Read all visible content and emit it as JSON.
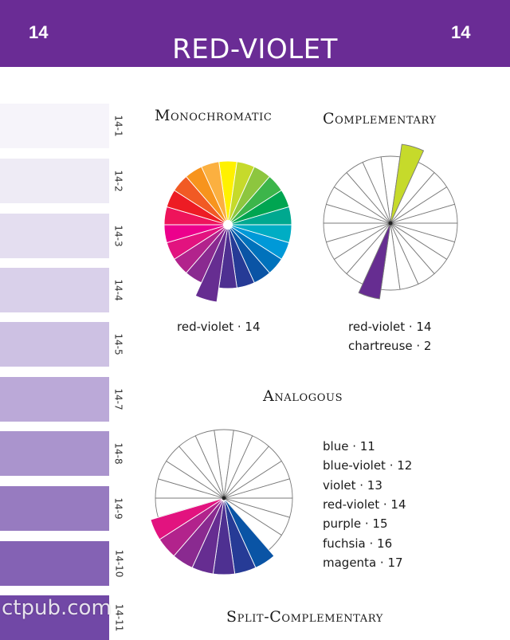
{
  "header": {
    "page_number_left": "14",
    "page_number_right": "14",
    "title": "RED-VIOLET",
    "background_color": "#6a2c95"
  },
  "swatches": [
    {
      "label": "14-1",
      "color": "#f6f4fa"
    },
    {
      "label": "14-2",
      "color": "#eeebf5"
    },
    {
      "label": "14-3",
      "color": "#e4def0"
    },
    {
      "label": "14-4",
      "color": "#d9d0ea"
    },
    {
      "label": "14-5",
      "color": "#cdc1e3"
    },
    {
      "label": "14-7",
      "color": "#bba9d8"
    },
    {
      "label": "14-8",
      "color": "#aa94cd"
    },
    {
      "label": "14-9",
      "color": "#977bc0"
    },
    {
      "label": "14-10",
      "color": "#8462b4"
    },
    {
      "label": "14-11",
      "color": "#7148a6"
    }
  ],
  "wheel_colors": [
    "#fff100",
    "#c6da2b",
    "#8dc63f",
    "#3cb54a",
    "#00a551",
    "#00a88f",
    "#00adc4",
    "#0099d8",
    "#0072bc",
    "#0a54a5",
    "#263b96",
    "#4e3091",
    "#662d91",
    "#8a2a90",
    "#b2238c",
    "#e2137f",
    "#ec008c",
    "#ee145b",
    "#ed1c24",
    "#f15a24",
    "#f7941d",
    "#fbb040"
  ],
  "sections": {
    "monochromatic": {
      "heading": "Monochromatic",
      "captions": [
        "red-violet · 14"
      ]
    },
    "complementary": {
      "heading": "Complementary",
      "captions": [
        "red-violet · 14",
        "chartreuse · 2"
      ],
      "highlight_colors": [
        "#c6da2b",
        "#662d91"
      ]
    },
    "analogous": {
      "heading": "Analogous",
      "captions": [
        "blue · 11",
        "blue-violet · 12",
        "violet · 13",
        "red-violet  · 14",
        "purple · 15",
        "fuchsia · 16",
        "magenta · 17"
      ]
    },
    "split_complementary": {
      "heading": "Split-Complementary"
    }
  },
  "watermark": "ctpub.com"
}
